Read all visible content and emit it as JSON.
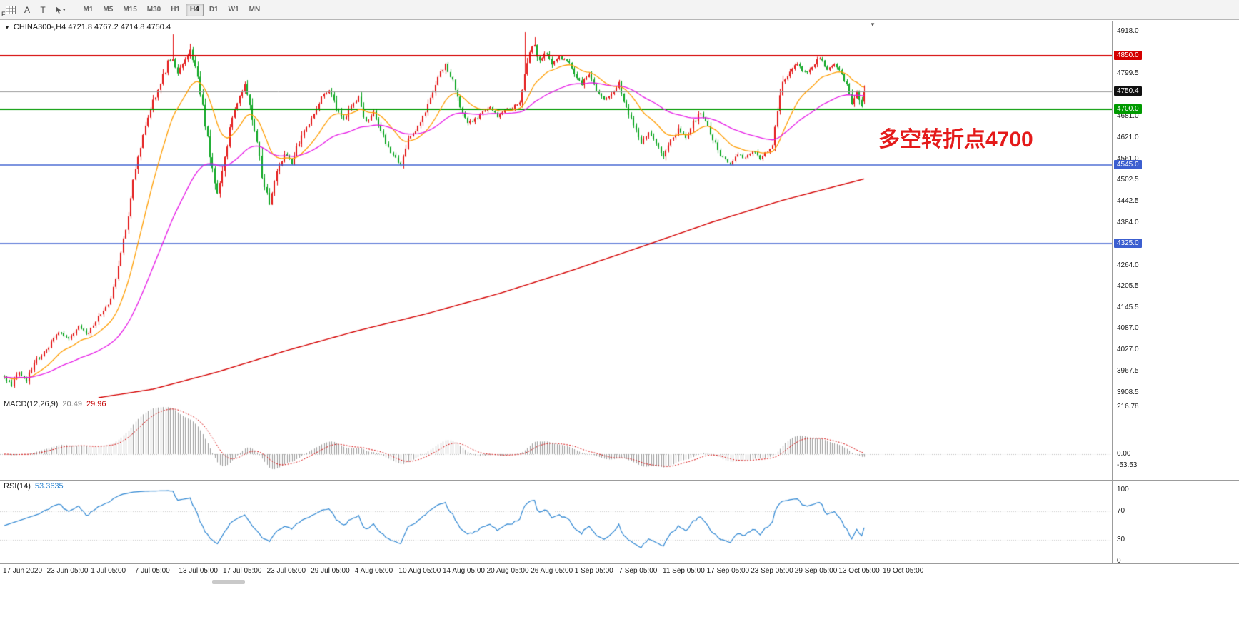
{
  "toolbar": {
    "buttons": {
      "a": "A",
      "t": "T"
    },
    "timeframes": [
      "M1",
      "M5",
      "M15",
      "M30",
      "H1",
      "H4",
      "D1",
      "W1",
      "MN"
    ],
    "active_timeframe": "H4",
    "side_label": "F"
  },
  "chart": {
    "symbol_info": "CHINA300-,H4 4721.8 4767.2 4714.8 4750.4",
    "annotation": {
      "text": "多空转折点4700",
      "color": "#e41a1a"
    },
    "icons": {
      "collapse": "▼",
      "shift": "▼",
      "dropdown": "▾"
    }
  },
  "chart_data": {
    "type": "candlestick",
    "symbol": "CHINA300-",
    "timeframe": "H4",
    "title": "CHINA300-,H4",
    "ohlc_current": {
      "open": 4721.8,
      "high": 4767.2,
      "low": 4714.8,
      "close": 4750.4
    },
    "price_axis": {
      "view_min": 3894,
      "view_max": 4948,
      "ticks": [
        {
          "label": "4918.0",
          "price": 4918.0
        },
        {
          "label": "4799.5",
          "price": 4799.5
        },
        {
          "label": "4681.0",
          "price": 4681.0
        },
        {
          "label": "4621.0",
          "price": 4621.0
        },
        {
          "label": "4561.0",
          "price": 4561.0
        },
        {
          "label": "4502.5",
          "price": 4502.5
        },
        {
          "label": "4442.5",
          "price": 4442.5
        },
        {
          "label": "4384.0",
          "price": 4384.0
        },
        {
          "label": "4264.0",
          "price": 4264.0
        },
        {
          "label": "4205.5",
          "price": 4205.5
        },
        {
          "label": "4145.5",
          "price": 4145.5
        },
        {
          "label": "4087.0",
          "price": 4087.0
        },
        {
          "label": "4027.0",
          "price": 4027.0
        },
        {
          "label": "3967.5",
          "price": 3967.5
        },
        {
          "label": "3908.5",
          "price": 3908.5
        }
      ]
    },
    "time_labels": [
      "17 Jun 2020",
      "23 Jun 05:00",
      "1 Jul 05:00",
      "7 Jul 05:00",
      "13 Jul 05:00",
      "17 Jul 05:00",
      "23 Jul 05:00",
      "29 Jul 05:00",
      "4 Aug 05:00",
      "10 Aug 05:00",
      "14 Aug 05:00",
      "20 Aug 05:00",
      "26 Aug 05:00",
      "1 Sep 05:00",
      "7 Sep 05:00",
      "11 Sep 05:00",
      "17 Sep 05:00",
      "23 Sep 05:00",
      "29 Sep 05:00",
      "13 Oct 05:00",
      "19 Oct 05:00"
    ],
    "levels": [
      {
        "label": "4850.0",
        "price": 4850.0,
        "color": "#d40000",
        "width": 2
      },
      {
        "label": "4700.0",
        "price": 4700.0,
        "color": "#009a00",
        "width": 2
      },
      {
        "label": "4545.0",
        "price": 4545.0,
        "color": "#3c5fd0",
        "width": 1.5
      },
      {
        "label": "4325.0",
        "price": 4325.0,
        "color": "#3c5fd0",
        "width": 1.5
      }
    ],
    "bid": {
      "label": "4750.4",
      "price": 4750.4,
      "line_color": "#999999",
      "badge_bg": "#111111"
    },
    "num_bars": 348,
    "candle_colors": {
      "up": "#e31212",
      "down": "#08a41e"
    },
    "close_anchors": [
      [
        0,
        3950
      ],
      [
        3,
        3930
      ],
      [
        6,
        3966
      ],
      [
        9,
        3944
      ],
      [
        12,
        3992
      ],
      [
        15,
        4012
      ],
      [
        18,
        4040
      ],
      [
        22,
        4076
      ],
      [
        26,
        4058
      ],
      [
        30,
        4092
      ],
      [
        34,
        4072
      ],
      [
        38,
        4122
      ],
      [
        42,
        4152
      ],
      [
        45,
        4232
      ],
      [
        48,
        4332
      ],
      [
        51,
        4452
      ],
      [
        54,
        4572
      ],
      [
        57,
        4652
      ],
      [
        60,
        4722
      ],
      [
        63,
        4772
      ],
      [
        66,
        4830
      ],
      [
        68,
        4842
      ],
      [
        70,
        4792
      ],
      [
        72,
        4830
      ],
      [
        75,
        4862
      ],
      [
        77,
        4820
      ],
      [
        79,
        4748
      ],
      [
        81,
        4650
      ],
      [
        84,
        4540
      ],
      [
        86,
        4470
      ],
      [
        88,
        4532
      ],
      [
        91,
        4640
      ],
      [
        94,
        4722
      ],
      [
        97,
        4772
      ],
      [
        99,
        4722
      ],
      [
        101,
        4640
      ],
      [
        103,
        4560
      ],
      [
        105,
        4480
      ],
      [
        107,
        4440
      ],
      [
        110,
        4520
      ],
      [
        113,
        4580
      ],
      [
        116,
        4550
      ],
      [
        119,
        4612
      ],
      [
        122,
        4652
      ],
      [
        125,
        4692
      ],
      [
        128,
        4732
      ],
      [
        131,
        4752
      ],
      [
        134,
        4702
      ],
      [
        137,
        4672
      ],
      [
        140,
        4712
      ],
      [
        143,
        4732
      ],
      [
        146,
        4662
      ],
      [
        149,
        4692
      ],
      [
        152,
        4642
      ],
      [
        155,
        4592
      ],
      [
        158,
        4560
      ],
      [
        160,
        4546
      ],
      [
        163,
        4612
      ],
      [
        166,
        4642
      ],
      [
        169,
        4682
      ],
      [
        172,
        4732
      ],
      [
        175,
        4792
      ],
      [
        178,
        4822
      ],
      [
        181,
        4782
      ],
      [
        184,
        4702
      ],
      [
        187,
        4662
      ],
      [
        190,
        4672
      ],
      [
        193,
        4692
      ],
      [
        196,
        4706
      ],
      [
        199,
        4682
      ],
      [
        202,
        4696
      ],
      [
        205,
        4706
      ],
      [
        208,
        4722
      ],
      [
        210,
        4792
      ],
      [
        212,
        4872
      ],
      [
        214,
        4882
      ],
      [
        216,
        4832
      ],
      [
        218,
        4862
      ],
      [
        221,
        4822
      ],
      [
        224,
        4846
      ],
      [
        227,
        4836
      ],
      [
        230,
        4802
      ],
      [
        233,
        4772
      ],
      [
        236,
        4802
      ],
      [
        239,
        4752
      ],
      [
        242,
        4722
      ],
      [
        245,
        4742
      ],
      [
        248,
        4772
      ],
      [
        251,
        4702
      ],
      [
        254,
        4652
      ],
      [
        257,
        4612
      ],
      [
        260,
        4632
      ],
      [
        263,
        4602
      ],
      [
        266,
        4572
      ],
      [
        269,
        4612
      ],
      [
        272,
        4642
      ],
      [
        275,
        4622
      ],
      [
        278,
        4662
      ],
      [
        281,
        4692
      ],
      [
        284,
        4652
      ],
      [
        287,
        4602
      ],
      [
        290,
        4562
      ],
      [
        293,
        4546
      ],
      [
        296,
        4576
      ],
      [
        299,
        4562
      ],
      [
        302,
        4586
      ],
      [
        305,
        4562
      ],
      [
        308,
        4582
      ],
      [
        310,
        4606
      ],
      [
        312,
        4700
      ],
      [
        314,
        4780
      ],
      [
        317,
        4806
      ],
      [
        320,
        4832
      ],
      [
        323,
        4802
      ],
      [
        326,
        4822
      ],
      [
        329,
        4846
      ],
      [
        332,
        4806
      ],
      [
        335,
        4826
      ],
      [
        338,
        4802
      ],
      [
        340,
        4762
      ],
      [
        342,
        4722
      ],
      [
        344,
        4746
      ],
      [
        346,
        4706
      ],
      [
        347,
        4750.4
      ]
    ],
    "wick_overrides": [
      [
        68,
        4910
      ],
      [
        75,
        4884
      ],
      [
        210,
        4916
      ],
      [
        214,
        4902
      ]
    ],
    "last_candle": {
      "open": 4721.8,
      "high": 4767.2,
      "low": 4714.8,
      "close": 4750.4
    },
    "moving_averages": {
      "fast": {
        "period": 18,
        "color": "#ff9d00"
      },
      "mid": {
        "period": 55,
        "color": "#e619e6"
      },
      "slow": {
        "color": "#d40000",
        "anchors": [
          [
            38,
            3894
          ],
          [
            60,
            3918
          ],
          [
            86,
            3966
          ],
          [
            114,
            4026
          ],
          [
            143,
            4082
          ],
          [
            171,
            4130
          ],
          [
            200,
            4186
          ],
          [
            229,
            4250
          ],
          [
            257,
            4316
          ],
          [
            286,
            4386
          ],
          [
            314,
            4446
          ],
          [
            347,
            4506
          ]
        ]
      }
    },
    "macd": {
      "label": "MACD(12,26,9)",
      "main_value": "20.49",
      "signal_value": "29.96",
      "params": [
        12,
        26,
        9
      ],
      "axis_labels": [
        {
          "label": "216.78",
          "value": 216.78
        },
        {
          "label": "0.00",
          "value": 0
        },
        {
          "label": "-53.53",
          "value": -53.53
        }
      ],
      "histogram_color": "#9b9b9b",
      "signal_color": "#d40000"
    },
    "rsi": {
      "label": "RSI(14)",
      "value": "53.3635",
      "period": 14,
      "levels": [
        70,
        30
      ],
      "axis_labels": [
        {
          "label": "100",
          "value": 100
        },
        {
          "label": "70",
          "value": 70
        },
        {
          "label": "30",
          "value": 30
        },
        {
          "label": "0",
          "value": 0
        }
      ],
      "color": "#2e86d2"
    }
  }
}
